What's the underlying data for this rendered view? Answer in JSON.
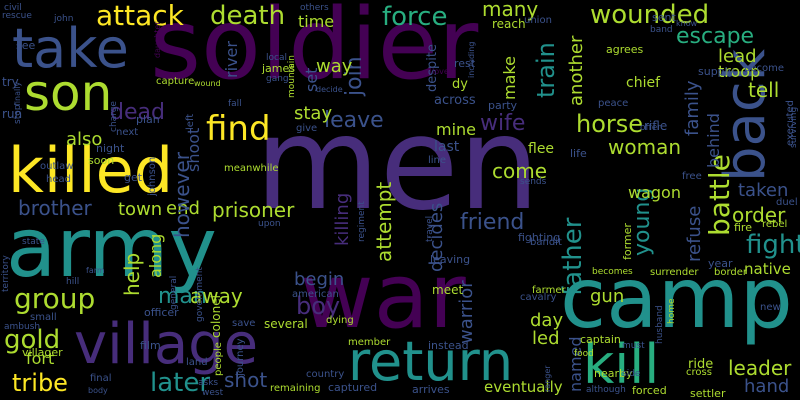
{
  "background": "#000000",
  "palette": {
    "dark_purple": "#440154",
    "purple": "#472d7b",
    "indigo": "#3b528b",
    "blue": "#2c728e",
    "teal": "#21918c",
    "sea_green": "#28ae80",
    "green": "#5ec962",
    "lime": "#addc30",
    "yellow": "#fde725"
  },
  "words": [
    {
      "text": "men",
      "color": "purple"
    },
    {
      "text": "soldier",
      "color": "dark_purple"
    },
    {
      "text": "war",
      "color": "dark_purple"
    },
    {
      "text": "army",
      "color": "teal"
    },
    {
      "text": "camp",
      "color": "teal"
    },
    {
      "text": "killed",
      "color": "yellow"
    },
    {
      "text": "village",
      "color": "purple"
    },
    {
      "text": "return",
      "color": "teal"
    },
    {
      "text": "kill",
      "color": "sea_green"
    },
    {
      "text": "take",
      "color": "indigo"
    },
    {
      "text": "son",
      "color": "lime"
    },
    {
      "text": "back",
      "color": "indigo"
    },
    {
      "text": "find",
      "color": "yellow"
    },
    {
      "text": "attack",
      "color": "yellow"
    },
    {
      "text": "death",
      "color": "lime"
    },
    {
      "text": "force",
      "color": "sea_green"
    },
    {
      "text": "wounded",
      "color": "lime"
    },
    {
      "text": "escape",
      "color": "sea_green"
    },
    {
      "text": "group",
      "color": "lime"
    },
    {
      "text": "tribe",
      "color": "yellow"
    },
    {
      "text": "later",
      "color": "teal"
    },
    {
      "text": "gold",
      "color": "lime"
    },
    {
      "text": "leave",
      "color": "indigo"
    },
    {
      "text": "horse",
      "color": "lime"
    },
    {
      "text": "wife",
      "color": "purple"
    },
    {
      "text": "battle",
      "color": "lime"
    },
    {
      "text": "fight",
      "color": "teal"
    },
    {
      "text": "father",
      "color": "teal"
    },
    {
      "text": "friend",
      "color": "indigo"
    },
    {
      "text": "brother",
      "color": "indigo"
    },
    {
      "text": "dead",
      "color": "purple"
    },
    {
      "text": "prisoner",
      "color": "lime"
    },
    {
      "text": "boy",
      "color": "purple"
    },
    {
      "text": "man",
      "color": "teal"
    },
    {
      "text": "help",
      "color": "lime"
    },
    {
      "text": "away",
      "color": "lime"
    },
    {
      "text": "train",
      "color": "teal"
    },
    {
      "text": "join",
      "color": "indigo"
    },
    {
      "text": "young",
      "color": "teal"
    },
    {
      "text": "woman",
      "color": "lime"
    },
    {
      "text": "come",
      "color": "lime"
    },
    {
      "text": "leader",
      "color": "lime"
    },
    {
      "text": "order",
      "color": "lime"
    },
    {
      "text": "shot",
      "color": "indigo"
    },
    {
      "text": "fort",
      "color": "lime"
    },
    {
      "text": "town",
      "color": "lime"
    },
    {
      "text": "end",
      "color": "lime"
    },
    {
      "text": "also",
      "color": "lime"
    },
    {
      "text": "however",
      "color": "indigo"
    },
    {
      "text": "attempt",
      "color": "lime"
    },
    {
      "text": "killing",
      "color": "purple"
    },
    {
      "text": "decides",
      "color": "indigo"
    },
    {
      "text": "refuse",
      "color": "indigo"
    },
    {
      "text": "warrior",
      "color": "indigo"
    },
    {
      "text": "day",
      "color": "lime"
    },
    {
      "text": "led",
      "color": "lime"
    },
    {
      "text": "gun",
      "color": "lime"
    },
    {
      "text": "hand",
      "color": "indigo"
    },
    {
      "text": "taken",
      "color": "indigo"
    },
    {
      "text": "tell",
      "color": "lime"
    },
    {
      "text": "lead",
      "color": "lime"
    },
    {
      "text": "troop",
      "color": "lime"
    },
    {
      "text": "family",
      "color": "indigo"
    },
    {
      "text": "another",
      "color": "lime"
    },
    {
      "text": "make",
      "color": "lime"
    },
    {
      "text": "many",
      "color": "lime"
    },
    {
      "text": "stay",
      "color": "lime"
    },
    {
      "text": "mine",
      "color": "lime"
    },
    {
      "text": "begin",
      "color": "indigo"
    },
    {
      "text": "named",
      "color": "indigo"
    },
    {
      "text": "way",
      "color": "lime"
    },
    {
      "text": "time",
      "color": "lime"
    },
    {
      "text": "set",
      "color": "indigo"
    },
    {
      "text": "along",
      "color": "lime"
    },
    {
      "text": "shoot",
      "color": "indigo"
    },
    {
      "text": "eventually",
      "color": "lime"
    },
    {
      "text": "behind",
      "color": "indigo"
    },
    {
      "text": "wagon",
      "color": "lime"
    },
    {
      "text": "river",
      "color": "indigo"
    },
    {
      "text": "chief",
      "color": "lime"
    },
    {
      "text": "flee",
      "color": "lime"
    },
    {
      "text": "last",
      "color": "indigo"
    },
    {
      "text": "across",
      "color": "indigo"
    },
    {
      "text": "despite",
      "color": "indigo"
    },
    {
      "text": "rest",
      "color": "indigo"
    },
    {
      "text": "dy",
      "color": "lime"
    },
    {
      "text": "party",
      "color": "indigo"
    },
    {
      "text": "reach",
      "color": "lime"
    },
    {
      "text": "union",
      "color": "indigo"
    },
    {
      "text": "sent",
      "color": "indigo"
    },
    {
      "text": "band",
      "color": "indigo"
    },
    {
      "text": "know",
      "color": "indigo"
    },
    {
      "text": "agrees",
      "color": "lime"
    },
    {
      "text": "become",
      "color": "indigo"
    },
    {
      "text": "supply",
      "color": "indigo"
    },
    {
      "text": "executed",
      "color": "indigo"
    },
    {
      "text": "rifle",
      "color": "indigo"
    },
    {
      "text": "offer",
      "color": "indigo"
    },
    {
      "text": "peace",
      "color": "indigo"
    },
    {
      "text": "life",
      "color": "indigo"
    },
    {
      "text": "free",
      "color": "indigo"
    },
    {
      "text": "surviving",
      "color": "indigo"
    },
    {
      "text": "duel",
      "color": "indigo"
    },
    {
      "text": "rebel",
      "color": "lime"
    },
    {
      "text": "fire",
      "color": "lime"
    },
    {
      "text": "year",
      "color": "indigo"
    },
    {
      "text": "native",
      "color": "lime"
    },
    {
      "text": "border",
      "color": "lime"
    },
    {
      "text": "surrender",
      "color": "lime"
    },
    {
      "text": "becomes",
      "color": "lime"
    },
    {
      "text": "former",
      "color": "lime"
    },
    {
      "text": "bandit",
      "color": "indigo"
    },
    {
      "text": "fighting",
      "color": "indigo"
    },
    {
      "text": "sends",
      "color": "indigo"
    },
    {
      "text": "line",
      "color": "indigo"
    },
    {
      "text": "travel",
      "color": "indigo"
    },
    {
      "text": "regiment",
      "color": "indigo"
    },
    {
      "text": "leaving",
      "color": "indigo"
    },
    {
      "text": "meet",
      "color": "lime"
    },
    {
      "text": "farmer",
      "color": "lime"
    },
    {
      "text": "cavalry",
      "color": "indigo"
    },
    {
      "text": "captain",
      "color": "lime"
    },
    {
      "text": "instead",
      "color": "indigo"
    },
    {
      "text": "member",
      "color": "lime"
    },
    {
      "text": "dying",
      "color": "lime"
    },
    {
      "text": "american",
      "color": "indigo"
    },
    {
      "text": "several",
      "color": "lime"
    },
    {
      "text": "save",
      "color": "indigo"
    },
    {
      "text": "country",
      "color": "indigo"
    },
    {
      "text": "captured",
      "color": "indigo"
    },
    {
      "text": "arrives",
      "color": "indigo"
    },
    {
      "text": "remaining",
      "color": "lime"
    },
    {
      "text": "west",
      "color": "indigo"
    },
    {
      "text": "asks",
      "color": "indigo"
    },
    {
      "text": "body",
      "color": "indigo"
    },
    {
      "text": "final",
      "color": "indigo"
    },
    {
      "text": "film",
      "color": "indigo"
    },
    {
      "text": "land",
      "color": "indigo"
    },
    {
      "text": "people",
      "color": "lime"
    },
    {
      "text": "journey",
      "color": "indigo"
    },
    {
      "text": "colonel",
      "color": "lime"
    },
    {
      "text": "officer",
      "color": "indigo"
    },
    {
      "text": "villager",
      "color": "lime"
    },
    {
      "text": "small",
      "color": "indigo"
    },
    {
      "text": "ambush",
      "color": "indigo"
    },
    {
      "text": "hill",
      "color": "indigo"
    },
    {
      "text": "state",
      "color": "indigo"
    },
    {
      "text": "territory",
      "color": "indigo"
    },
    {
      "text": "farm",
      "color": "indigo"
    },
    {
      "text": "general",
      "color": "indigo"
    },
    {
      "text": "government",
      "color": "indigo"
    },
    {
      "text": "upon",
      "color": "indigo"
    },
    {
      "text": "johnson",
      "color": "indigo"
    },
    {
      "text": "meanwhile",
      "color": "lime"
    },
    {
      "text": "give",
      "color": "indigo"
    },
    {
      "text": "left",
      "color": "indigo"
    },
    {
      "text": "plan",
      "color": "indigo"
    },
    {
      "text": "next",
      "color": "indigo"
    },
    {
      "text": "night",
      "color": "indigo"
    },
    {
      "text": "soon",
      "color": "lime"
    },
    {
      "text": "get",
      "color": "indigo"
    },
    {
      "text": "outlaw",
      "color": "indigo"
    },
    {
      "text": "head",
      "color": "indigo"
    },
    {
      "text": "charge",
      "color": "indigo"
    },
    {
      "text": "capture",
      "color": "lime"
    },
    {
      "text": "stop",
      "color": "indigo"
    },
    {
      "text": "run",
      "color": "indigo"
    },
    {
      "text": "try",
      "color": "indigo"
    },
    {
      "text": "see",
      "color": "indigo"
    },
    {
      "text": "civil",
      "color": "indigo"
    },
    {
      "text": "rescue",
      "color": "indigo"
    },
    {
      "text": "john",
      "color": "indigo"
    },
    {
      "text": "daughter",
      "color": "dark_purple"
    },
    {
      "text": "others",
      "color": "indigo"
    },
    {
      "text": "wound",
      "color": "lime"
    },
    {
      "text": "local",
      "color": "indigo"
    },
    {
      "text": "james",
      "color": "lime"
    },
    {
      "text": "gang",
      "color": "indigo"
    },
    {
      "text": "fall",
      "color": "indigo"
    },
    {
      "text": "mountain",
      "color": "lime"
    },
    {
      "text": "decide",
      "color": "indigo"
    },
    {
      "text": "love",
      "color": "dark_purple"
    },
    {
      "text": "including",
      "color": "indigo"
    },
    {
      "text": "nearby",
      "color": "lime"
    },
    {
      "text": "food",
      "color": "lime"
    },
    {
      "text": "must",
      "color": "indigo"
    },
    {
      "text": "side",
      "color": "indigo"
    },
    {
      "text": "husband",
      "color": "indigo"
    },
    {
      "text": "home",
      "color": "lime"
    },
    {
      "text": "ride",
      "color": "lime"
    },
    {
      "text": "cross",
      "color": "lime"
    },
    {
      "text": "forced",
      "color": "lime"
    },
    {
      "text": "although",
      "color": "indigo"
    },
    {
      "text": "settler",
      "color": "lime"
    },
    {
      "text": "new",
      "color": "indigo"
    },
    {
      "text": "ranger",
      "color": "indigo"
    },
    {
      "text": "finally",
      "color": "indigo"
    }
  ]
}
